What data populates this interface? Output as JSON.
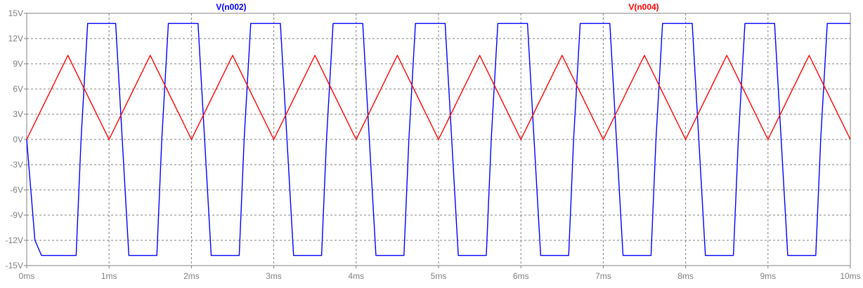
{
  "chart_data": {
    "type": "line",
    "title": "",
    "xlabel": "",
    "ylabel": "",
    "xlim": [
      0,
      10
    ],
    "ylim": [
      -15,
      15
    ],
    "grid": true,
    "legend_placement": "top",
    "x_ticks": [
      "0ms",
      "1ms",
      "2ms",
      "3ms",
      "4ms",
      "5ms",
      "6ms",
      "7ms",
      "8ms",
      "9ms",
      "10ms"
    ],
    "y_ticks": [
      "15V",
      "12V",
      "9V",
      "6V",
      "3V",
      "0V",
      "-3V",
      "-6V",
      "-9V",
      "-12V",
      "-15V"
    ],
    "series": [
      {
        "name": "V(n002)",
        "color": "#0000ff",
        "x": [
          0.0,
          0.1,
          0.18,
          0.6,
          0.66,
          0.74,
          1.08,
          1.16,
          1.24,
          1.58,
          1.64,
          1.72,
          2.08,
          2.16,
          2.24,
          2.58,
          2.64,
          2.72,
          3.08,
          3.16,
          3.24,
          3.58,
          3.64,
          3.72,
          4.08,
          4.16,
          4.24,
          4.58,
          4.64,
          4.72,
          5.08,
          5.16,
          5.24,
          5.58,
          5.64,
          5.72,
          6.08,
          6.16,
          6.24,
          6.58,
          6.64,
          6.72,
          7.08,
          7.16,
          7.24,
          7.58,
          7.64,
          7.72,
          8.08,
          8.16,
          8.24,
          8.58,
          8.64,
          8.72,
          9.08,
          9.16,
          9.24,
          9.58,
          9.64,
          9.72,
          10.0
        ],
        "y": [
          0,
          -12,
          -13.8,
          -13.8,
          0,
          13.8,
          13.8,
          0,
          -13.8,
          -13.8,
          0,
          13.8,
          13.8,
          0,
          -13.8,
          -13.8,
          0,
          13.8,
          13.8,
          0,
          -13.8,
          -13.8,
          0,
          13.8,
          13.8,
          0,
          -13.8,
          -13.8,
          0,
          13.8,
          13.8,
          0,
          -13.8,
          -13.8,
          0,
          13.8,
          13.8,
          0,
          -13.8,
          -13.8,
          0,
          13.8,
          13.8,
          0,
          -13.8,
          -13.8,
          0,
          13.8,
          13.8,
          0,
          -13.8,
          -13.8,
          0,
          13.8,
          13.8,
          0,
          -13.8,
          -13.8,
          0,
          13.8,
          13.8
        ]
      },
      {
        "name": "V(n004)",
        "color": "#ff0000",
        "x": [
          0.0,
          0.5,
          1.0,
          1.5,
          2.0,
          2.5,
          3.0,
          3.5,
          4.0,
          4.5,
          5.0,
          5.5,
          6.0,
          6.5,
          7.0,
          7.5,
          8.0,
          8.5,
          9.0,
          9.5,
          10.0
        ],
        "y": [
          0,
          10,
          0,
          10,
          0,
          10,
          0,
          10,
          0,
          10,
          0,
          10,
          0,
          10,
          0,
          10,
          0,
          10,
          0,
          10,
          0
        ]
      }
    ]
  }
}
